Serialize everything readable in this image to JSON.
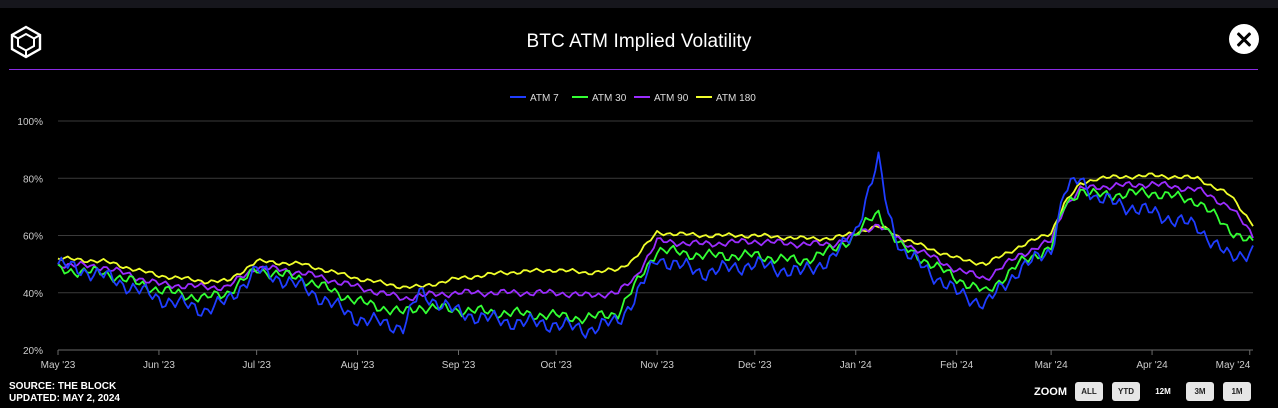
{
  "header": {
    "title": "BTC ATM Implied Volatility",
    "close_icon": "close-icon",
    "logo_icon": "the-block-logo-icon"
  },
  "footer": {
    "source": "SOURCE: THE BLOCK",
    "updated": "UPDATED: MAY 2, 2024"
  },
  "zoom": {
    "label": "ZOOM",
    "buttons": [
      {
        "label": "ALL",
        "active": false
      },
      {
        "label": "YTD",
        "active": false
      },
      {
        "label": "12M",
        "active": true
      },
      {
        "label": "3M",
        "active": false
      },
      {
        "label": "1M",
        "active": false
      }
    ]
  },
  "chart_data": {
    "type": "line",
    "title": "BTC ATM Implied Volatility",
    "xlabel": "",
    "ylabel": "",
    "ylim": [
      20,
      100
    ],
    "y_ticks": [
      "20%",
      "40%",
      "60%",
      "80%",
      "100%"
    ],
    "x_ticks": [
      "May '23",
      "Jun '23",
      "Jul '23",
      "Aug '23",
      "Sep '23",
      "Oct '23",
      "Nov '23",
      "Dec '23",
      "Jan '24",
      "Feb '24",
      "Mar '24",
      "Apr '24",
      "May '24"
    ],
    "grid": true,
    "legend_position": "top-center",
    "x_start": "2023-05-01",
    "x_end": "2024-05-02",
    "series": [
      {
        "name": "ATM 7",
        "color": "#1f3dff",
        "x": [
          "2023-05-01",
          "2023-05-15",
          "2023-06-01",
          "2023-06-15",
          "2023-06-22",
          "2023-07-01",
          "2023-07-15",
          "2023-08-01",
          "2023-08-15",
          "2023-08-20",
          "2023-09-01",
          "2023-09-15",
          "2023-10-01",
          "2023-10-10",
          "2023-10-20",
          "2023-10-25",
          "2023-11-01",
          "2023-11-15",
          "2023-12-01",
          "2023-12-15",
          "2023-12-25",
          "2024-01-01",
          "2024-01-04",
          "2024-01-08",
          "2024-01-11",
          "2024-01-15",
          "2024-02-01",
          "2024-02-10",
          "2024-02-20",
          "2024-03-01",
          "2024-03-05",
          "2024-03-10",
          "2024-03-15",
          "2024-04-01",
          "2024-04-15",
          "2024-04-25",
          "2024-05-02"
        ],
        "y": [
          50,
          46,
          38,
          34,
          37,
          48,
          42,
          31,
          28,
          40,
          33,
          30,
          29,
          27,
          30,
          38,
          52,
          47,
          50,
          47,
          52,
          62,
          72,
          86,
          68,
          55,
          40,
          36,
          48,
          55,
          75,
          80,
          73,
          68,
          63,
          52,
          55
        ]
      },
      {
        "name": "ATM 30",
        "color": "#33ff33",
        "x": [
          "2023-05-01",
          "2023-05-15",
          "2023-06-01",
          "2023-06-15",
          "2023-06-22",
          "2023-07-01",
          "2023-07-15",
          "2023-08-01",
          "2023-08-15",
          "2023-08-20",
          "2023-09-01",
          "2023-09-15",
          "2023-10-01",
          "2023-10-10",
          "2023-10-20",
          "2023-10-25",
          "2023-11-01",
          "2023-11-15",
          "2023-12-01",
          "2023-12-15",
          "2023-12-25",
          "2024-01-01",
          "2024-01-04",
          "2024-01-08",
          "2024-01-11",
          "2024-01-15",
          "2024-02-01",
          "2024-02-10",
          "2024-02-20",
          "2024-03-01",
          "2024-03-05",
          "2024-03-10",
          "2024-03-15",
          "2024-04-01",
          "2024-04-15",
          "2024-04-25",
          "2024-05-02"
        ],
        "y": [
          48,
          47,
          41,
          38,
          40,
          48,
          45,
          37,
          33,
          35,
          34,
          33,
          32,
          31,
          33,
          42,
          55,
          53,
          53,
          51,
          55,
          60,
          64,
          68,
          62,
          56,
          45,
          40,
          50,
          56,
          70,
          76,
          74,
          75,
          72,
          62,
          57
        ]
      },
      {
        "name": "ATM 90",
        "color": "#9b2cff",
        "x": [
          "2023-05-01",
          "2023-05-15",
          "2023-06-01",
          "2023-06-15",
          "2023-06-22",
          "2023-07-01",
          "2023-07-15",
          "2023-08-01",
          "2023-08-15",
          "2023-08-20",
          "2023-09-01",
          "2023-09-15",
          "2023-10-01",
          "2023-10-10",
          "2023-10-20",
          "2023-10-25",
          "2023-11-01",
          "2023-11-15",
          "2023-12-01",
          "2023-12-15",
          "2023-12-25",
          "2024-01-01",
          "2024-01-04",
          "2024-01-08",
          "2024-01-11",
          "2024-01-15",
          "2024-02-01",
          "2024-02-10",
          "2024-02-20",
          "2024-03-01",
          "2024-03-05",
          "2024-03-10",
          "2024-03-15",
          "2024-04-01",
          "2024-04-15",
          "2024-04-25",
          "2024-05-02"
        ],
        "y": [
          50,
          49,
          43,
          42,
          42,
          49,
          47,
          42,
          38,
          39,
          40,
          40,
          40,
          39,
          40,
          45,
          58,
          57,
          58,
          57,
          57,
          60,
          62,
          64,
          61,
          58,
          48,
          45,
          53,
          58,
          70,
          76,
          77,
          78,
          76,
          70,
          60
        ]
      },
      {
        "name": "ATM 180",
        "color": "#f0ff2a",
        "x": [
          "2023-05-01",
          "2023-05-15",
          "2023-06-01",
          "2023-06-15",
          "2023-06-22",
          "2023-07-01",
          "2023-07-15",
          "2023-08-01",
          "2023-08-15",
          "2023-08-20",
          "2023-09-01",
          "2023-09-15",
          "2023-10-01",
          "2023-10-10",
          "2023-10-20",
          "2023-10-25",
          "2023-11-01",
          "2023-11-15",
          "2023-12-01",
          "2023-12-15",
          "2023-12-25",
          "2024-01-01",
          "2024-01-04",
          "2024-01-08",
          "2024-01-11",
          "2024-01-15",
          "2024-02-01",
          "2024-02-10",
          "2024-02-20",
          "2024-03-01",
          "2024-03-05",
          "2024-03-10",
          "2024-03-15",
          "2024-04-01",
          "2024-04-15",
          "2024-04-25",
          "2024-05-02"
        ],
        "y": [
          52,
          51,
          46,
          44,
          44,
          51,
          50,
          45,
          42,
          42,
          45,
          47,
          48,
          47,
          48,
          52,
          61,
          60,
          60,
          59,
          59,
          61,
          62,
          63,
          62,
          59,
          52,
          50,
          56,
          61,
          71,
          78,
          80,
          81,
          80,
          74,
          64
        ]
      }
    ]
  }
}
